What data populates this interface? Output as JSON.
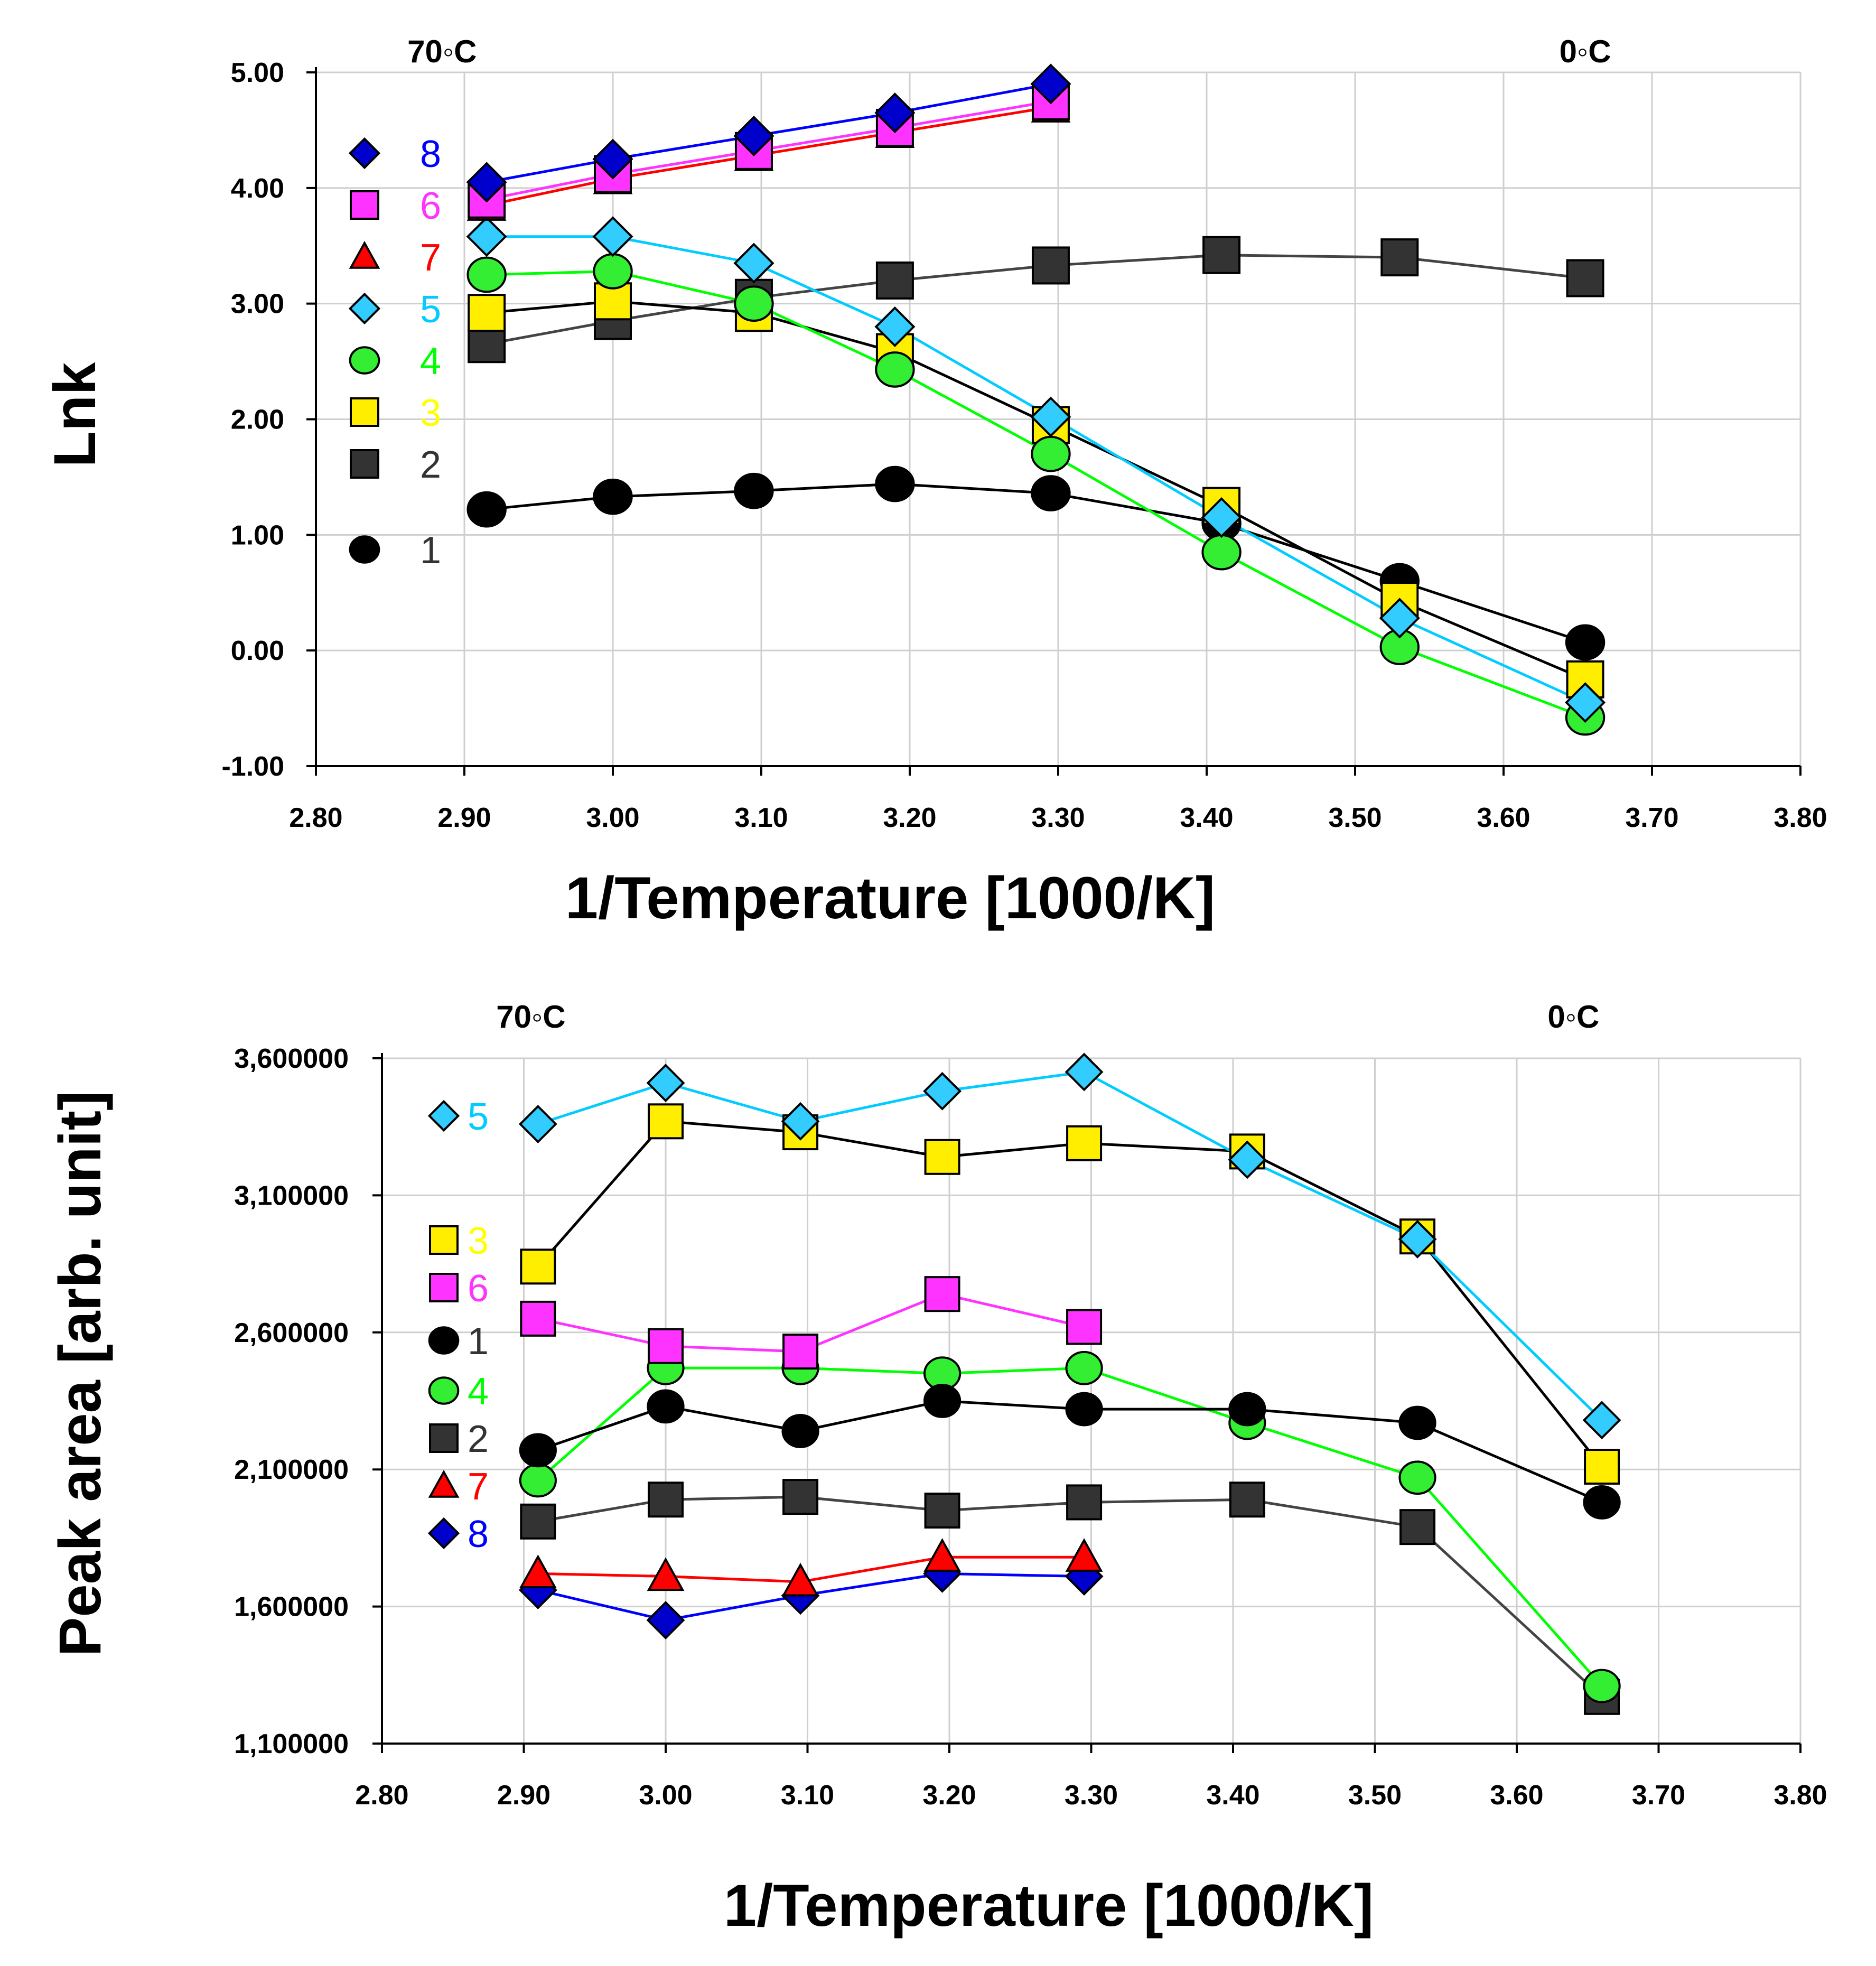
{
  "chart_data": [
    {
      "type": "line",
      "id": "top",
      "xlabel": "1/Temperature [1000/K]",
      "ylabel": "Lnk",
      "xlim": [
        2.8,
        3.8
      ],
      "ylim": [
        -1.0,
        5.0
      ],
      "xticks": [
        2.8,
        2.9,
        3.0,
        3.1,
        3.2,
        3.3,
        3.4,
        3.5,
        3.6,
        3.7,
        3.8
      ],
      "xtick_labels": [
        "2.80",
        "2.90",
        "3.00",
        "3.10",
        "3.20",
        "3.30",
        "3.40",
        "3.50",
        "3.60",
        "3.70",
        "3.80"
      ],
      "yticks": [
        -1,
        0,
        1,
        2,
        3,
        4,
        5
      ],
      "ytick_labels": [
        "-1.00",
        "0.00",
        "1.00",
        "2.00",
        "3.00",
        "4.00",
        "5.00"
      ],
      "annotations": [
        {
          "text": "70◦C",
          "x": 2.885
        },
        {
          "text": "0◦C",
          "x": 3.655
        }
      ],
      "legend_order": [
        "8",
        "6",
        "7",
        "5",
        "4",
        "3",
        "2",
        "1"
      ],
      "series": [
        {
          "name": "8",
          "marker": "diamond",
          "color": "#0000ff",
          "fill": "#0000cc",
          "x": [
            2.915,
            3.0,
            3.095,
            3.19,
            3.295
          ],
          "y": [
            4.05,
            4.25,
            4.45,
            4.65,
            4.9
          ]
        },
        {
          "name": "6",
          "marker": "square",
          "color": "#ff33ff",
          "fill": "#ff33ff",
          "x": [
            2.915,
            3.0,
            3.095,
            3.19,
            3.295
          ],
          "y": [
            3.9,
            4.12,
            4.32,
            4.52,
            4.75
          ]
        },
        {
          "name": "7",
          "marker": "triangle",
          "color": "#ff0000",
          "fill": "#ff0000",
          "x": [
            2.915,
            3.0,
            3.095,
            3.19,
            3.295
          ],
          "y": [
            3.85,
            4.08,
            4.28,
            4.48,
            4.7
          ]
        },
        {
          "name": "5",
          "marker": "diamond",
          "color": "#00ccff",
          "fill": "#33ccff",
          "x": [
            2.915,
            3.0,
            3.095,
            3.19,
            3.295,
            3.41,
            3.53,
            3.655
          ],
          "y": [
            3.58,
            3.58,
            3.35,
            2.8,
            2.02,
            1.15,
            0.28,
            -0.45
          ]
        },
        {
          "name": "4",
          "marker": "circle",
          "color": "#00ff00",
          "fill": "#33ee33",
          "x": [
            2.915,
            3.0,
            3.095,
            3.19,
            3.295,
            3.41,
            3.53,
            3.655
          ],
          "y": [
            3.25,
            3.28,
            3.0,
            2.43,
            1.7,
            0.85,
            0.03,
            -0.58
          ]
        },
        {
          "name": "3",
          "marker": "square",
          "color": "#ffff00",
          "fill": "#ffee00",
          "line": "#000000",
          "x": [
            2.915,
            3.0,
            3.095,
            3.19,
            3.295,
            3.41,
            3.53,
            3.655
          ],
          "y": [
            2.92,
            3.02,
            2.92,
            2.58,
            1.95,
            1.25,
            0.43,
            -0.25
          ]
        },
        {
          "name": "2",
          "marker": "square",
          "color": "#444444",
          "fill": "#333333",
          "x": [
            2.915,
            3.0,
            3.095,
            3.19,
            3.295,
            3.41,
            3.53,
            3.655
          ],
          "y": [
            2.65,
            2.85,
            3.05,
            3.2,
            3.33,
            3.42,
            3.4,
            3.22
          ]
        },
        {
          "name": "1",
          "marker": "circle",
          "color": "#000000",
          "fill": "#000000",
          "x": [
            2.915,
            3.0,
            3.095,
            3.19,
            3.295,
            3.41,
            3.53,
            3.655
          ],
          "y": [
            1.22,
            1.33,
            1.38,
            1.44,
            1.36,
            1.1,
            0.6,
            0.07
          ]
        }
      ]
    },
    {
      "type": "line",
      "id": "bottom",
      "xlabel": "1/Temperature [1000/K]",
      "ylabel": "Peak area [arb. unit]",
      "xlim": [
        2.8,
        3.8
      ],
      "ylim": [
        1100000,
        3600000
      ],
      "xticks": [
        2.8,
        2.9,
        3.0,
        3.1,
        3.2,
        3.3,
        3.4,
        3.5,
        3.6,
        3.7,
        3.8
      ],
      "xtick_labels": [
        "2.80",
        "2.90",
        "3.00",
        "3.10",
        "3.20",
        "3.30",
        "3.40",
        "3.50",
        "3.60",
        "3.70",
        "3.80"
      ],
      "yticks": [
        1100000,
        1600000,
        2100000,
        2600000,
        3100000,
        3600000
      ],
      "ytick_labels": [
        "1,100000",
        "1,600000",
        "2,100000",
        "2,600000",
        "3,100000",
        "3,600000"
      ],
      "annotations": [
        {
          "text": "70◦C",
          "x": 2.905
        },
        {
          "text": "0◦C",
          "x": 3.64
        }
      ],
      "legend_order": [
        "5",
        "3",
        "6",
        "1",
        "4",
        "2",
        "7",
        "8"
      ],
      "series": [
        {
          "name": "5",
          "marker": "diamond",
          "color": "#00ccff",
          "fill": "#33ccff",
          "x": [
            2.91,
            3.0,
            3.095,
            3.195,
            3.295,
            3.41,
            3.53,
            3.66
          ],
          "y": [
            3360000,
            3510000,
            3370000,
            3480000,
            3550000,
            3230000,
            2940000,
            2280000
          ]
        },
        {
          "name": "3",
          "marker": "square",
          "color": "#ffff00",
          "fill": "#ffee00",
          "line": "#000000",
          "x": [
            2.91,
            3.0,
            3.095,
            3.195,
            3.295,
            3.41,
            3.53,
            3.66
          ],
          "y": [
            2840000,
            3370000,
            3330000,
            3240000,
            3290000,
            3260000,
            2950000,
            2110000
          ]
        },
        {
          "name": "6",
          "marker": "square",
          "color": "#ff33ff",
          "fill": "#ff33ff",
          "x": [
            2.91,
            3.0,
            3.095,
            3.195,
            3.295
          ],
          "y": [
            2650000,
            2550000,
            2530000,
            2740000,
            2620000
          ]
        },
        {
          "name": "1",
          "marker": "circle",
          "color": "#000000",
          "fill": "#000000",
          "x": [
            2.91,
            3.0,
            3.095,
            3.195,
            3.295,
            3.41,
            3.53,
            3.66
          ],
          "y": [
            2170000,
            2330000,
            2240000,
            2350000,
            2320000,
            2320000,
            2270000,
            1980000
          ]
        },
        {
          "name": "4",
          "marker": "circle",
          "color": "#00ff00",
          "fill": "#33ee33",
          "x": [
            2.91,
            3.0,
            3.095,
            3.195,
            3.295,
            3.41,
            3.53,
            3.66
          ],
          "y": [
            2060000,
            2470000,
            2470000,
            2450000,
            2470000,
            2270000,
            2070000,
            1310000
          ]
        },
        {
          "name": "2",
          "marker": "square",
          "color": "#444444",
          "fill": "#333333",
          "x": [
            2.91,
            3.0,
            3.095,
            3.195,
            3.295,
            3.41,
            3.53,
            3.66
          ],
          "y": [
            1910000,
            1990000,
            2000000,
            1950000,
            1980000,
            1990000,
            1890000,
            1270000
          ]
        },
        {
          "name": "7",
          "marker": "triangle",
          "color": "#ff0000",
          "fill": "#ff0000",
          "x": [
            2.91,
            3.0,
            3.095,
            3.195,
            3.295
          ],
          "y": [
            1720000,
            1710000,
            1690000,
            1780000,
            1780000
          ]
        },
        {
          "name": "8",
          "marker": "diamond",
          "color": "#0000ff",
          "fill": "#0000cc",
          "x": [
            2.91,
            3.0,
            3.095,
            3.195,
            3.295
          ],
          "y": [
            1660000,
            1550000,
            1640000,
            1720000,
            1710000
          ]
        }
      ]
    }
  ]
}
